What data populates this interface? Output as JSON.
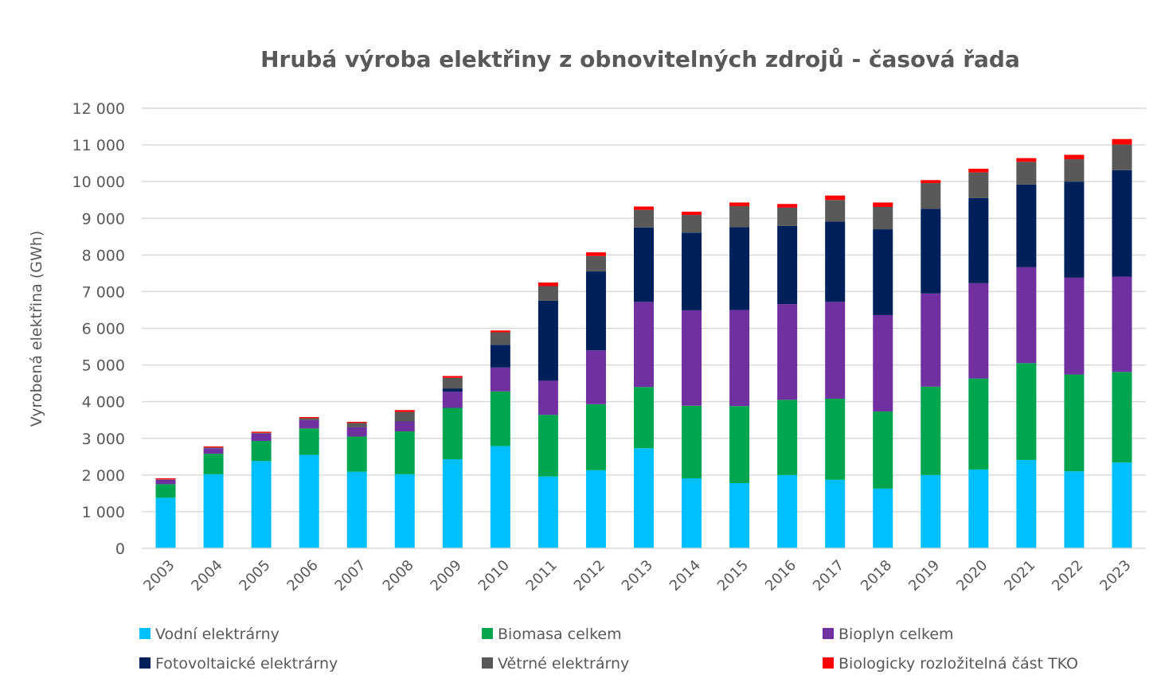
{
  "chart_data": {
    "type": "bar",
    "stacked": true,
    "title": "Hrubá výroba elektřiny z obnovitelných zdrojů - časová řada",
    "ylabel": "Vyrobená elektřina (GWh)",
    "xlabel": "",
    "ylim": [
      0,
      12000
    ],
    "yticks": [
      0,
      1000,
      2000,
      3000,
      4000,
      5000,
      6000,
      7000,
      8000,
      9000,
      10000,
      11000,
      12000
    ],
    "ytick_labels": [
      "0",
      "1 000",
      "2 000",
      "3 000",
      "4 000",
      "5 000",
      "6 000",
      "7 000",
      "8 000",
      "9 000",
      "10 000",
      "11 000",
      "12 000"
    ],
    "grid": true,
    "legend_position": "bottom",
    "categories": [
      "2003",
      "2004",
      "2005",
      "2006",
      "2007",
      "2008",
      "2009",
      "2010",
      "2011",
      "2012",
      "2013",
      "2014",
      "2015",
      "2016",
      "2017",
      "2018",
      "2019",
      "2020",
      "2021",
      "2022",
      "2023"
    ],
    "series": [
      {
        "name": "Vodní elektrárny",
        "color": "#00bfff",
        "values": [
          1380,
          2020,
          2380,
          2550,
          2090,
          2020,
          2430,
          2790,
          1960,
          2130,
          2730,
          1910,
          1780,
          2000,
          1870,
          1630,
          2000,
          2150,
          2410,
          2100,
          2340
        ]
      },
      {
        "name": "Biomasa celkem",
        "color": "#00a64f",
        "values": [
          370,
          560,
          550,
          720,
          960,
          1170,
          1400,
          1490,
          1680,
          1800,
          1670,
          1980,
          2100,
          2050,
          2210,
          2100,
          2410,
          2480,
          2640,
          2640,
          2470
        ]
      },
      {
        "name": "Bioplyn celkem",
        "color": "#7030a0",
        "values": [
          120,
          150,
          200,
          230,
          250,
          270,
          440,
          650,
          930,
          1470,
          2320,
          2600,
          2620,
          2610,
          2640,
          2630,
          2540,
          2600,
          2620,
          2640,
          2600
        ]
      },
      {
        "name": "Fotovoltaické elektrárny",
        "color": "#00205b",
        "values": [
          0,
          0,
          0,
          0,
          0,
          10,
          90,
          620,
          2180,
          2150,
          2030,
          2120,
          2260,
          2130,
          2190,
          2340,
          2310,
          2320,
          2250,
          2620,
          2900
        ]
      },
      {
        "name": "Větrné elektrárny",
        "color": "#595959",
        "values": [
          10,
          20,
          20,
          50,
          120,
          250,
          290,
          340,
          400,
          420,
          480,
          480,
          570,
          500,
          590,
          610,
          700,
          700,
          620,
          610,
          700
        ]
      },
      {
        "name": "Biologicky rozložitelná část TKO",
        "color": "#ff0000",
        "values": [
          30,
          30,
          30,
          30,
          30,
          50,
          50,
          50,
          100,
          100,
          90,
          90,
          100,
          100,
          120,
          120,
          80,
          100,
          100,
          120,
          150
        ]
      }
    ]
  }
}
